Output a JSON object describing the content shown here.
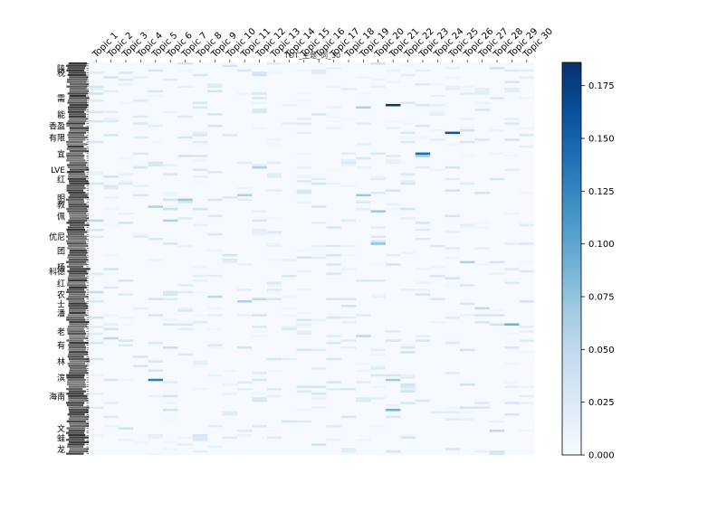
{
  "chart_data": {
    "type": "heatmap",
    "title": "TOT_主题_词_30",
    "columns": [
      "Topic 1",
      "Topic 2",
      "Topic 3",
      "Topic 4",
      "Topic 5",
      "Topic 6",
      "Topic 7",
      "Topic 8",
      "Topic 9",
      "Topic 10",
      "Topic 11",
      "Topic 12",
      "Topic 13",
      "Topic 14",
      "Topic 15",
      "Topic 16",
      "Topic 17",
      "Topic 18",
      "Topic 19",
      "Topic 20",
      "Topic 21",
      "Topic 22",
      "Topic 23",
      "Topic 24",
      "Topic 25",
      "Topic 26",
      "Topic 27",
      "Topic 28",
      "Topic 29",
      "Topic 30"
    ],
    "row_labels": [
      {
        "row": 2,
        "text": "陕"
      },
      {
        "row": 4,
        "text": "税"
      },
      {
        "row": 15,
        "text": "需"
      },
      {
        "row": 22,
        "text": "能"
      },
      {
        "row": 27,
        "text": "香盈"
      },
      {
        "row": 32,
        "text": "有限"
      },
      {
        "row": 39,
        "text": "宜"
      },
      {
        "row": 46,
        "text": "LVE"
      },
      {
        "row": 50,
        "text": "红"
      },
      {
        "row": 58,
        "text": "明"
      },
      {
        "row": 61,
        "text": "教"
      },
      {
        "row": 66,
        "text": "佩"
      },
      {
        "row": 75,
        "text": "优尼"
      },
      {
        "row": 81,
        "text": "团"
      },
      {
        "row": 88,
        "text": "杨"
      },
      {
        "row": 90,
        "text": "科德"
      },
      {
        "row": 95,
        "text": "红"
      },
      {
        "row": 100,
        "text": "农"
      },
      {
        "row": 104,
        "text": "士"
      },
      {
        "row": 108,
        "text": "潘"
      },
      {
        "row": 116,
        "text": "老"
      },
      {
        "row": 122,
        "text": "有"
      },
      {
        "row": 129,
        "text": "林"
      },
      {
        "row": 136,
        "text": "滨"
      },
      {
        "row": 144,
        "text": "海南"
      },
      {
        "row": 158,
        "text": "文"
      },
      {
        "row": 162,
        "text": "蛙"
      },
      {
        "row": 167,
        "text": "龙"
      }
    ],
    "n_rows": 170,
    "colorbar": {
      "min": 0,
      "max": 0.186,
      "ticks": [
        "0.000",
        "0.025",
        "0.050",
        "0.075",
        "0.100",
        "0.125",
        "0.150",
        "0.175"
      ],
      "colormap": "Blues"
    },
    "highlights": [
      {
        "topic": 1,
        "row": 4,
        "value": 0.02
      },
      {
        "topic": 1,
        "row": 68,
        "value": 0.05
      },
      {
        "topic": 1,
        "row": 99,
        "value": 0.045
      },
      {
        "topic": 1,
        "row": 128,
        "value": 0.03
      },
      {
        "topic": 2,
        "row": 115,
        "value": 0.03
      },
      {
        "topic": 2,
        "row": 119,
        "value": 0.05
      },
      {
        "topic": 3,
        "row": 7,
        "value": 0.025
      },
      {
        "topic": 5,
        "row": 62,
        "value": 0.06
      },
      {
        "topic": 5,
        "row": 137,
        "value": 0.13
      },
      {
        "topic": 5,
        "row": 3,
        "value": 0.03
      },
      {
        "topic": 6,
        "row": 63,
        "value": 0.04
      },
      {
        "topic": 6,
        "row": 68,
        "value": 0.06
      },
      {
        "topic": 6,
        "row": 123,
        "value": 0.04
      },
      {
        "topic": 7,
        "row": 59,
        "value": 0.07
      },
      {
        "topic": 8,
        "row": 5,
        "value": 0.03
      },
      {
        "topic": 9,
        "row": 101,
        "value": 0.05
      },
      {
        "topic": 11,
        "row": 57,
        "value": 0.06
      },
      {
        "topic": 11,
        "row": 103,
        "value": 0.06
      },
      {
        "topic": 11,
        "row": 3,
        "value": 0.025
      },
      {
        "topic": 12,
        "row": 45,
        "value": 0.06
      },
      {
        "topic": 12,
        "row": 102,
        "value": 0.05
      },
      {
        "topic": 19,
        "row": 19,
        "value": 0.06
      },
      {
        "topic": 19,
        "row": 57,
        "value": 0.07
      },
      {
        "topic": 19,
        "row": 118,
        "value": 0.05
      },
      {
        "topic": 20,
        "row": 64,
        "value": 0.07
      },
      {
        "topic": 20,
        "row": 78,
        "value": 0.075
      },
      {
        "topic": 21,
        "row": 18,
        "value": 0.18
      },
      {
        "topic": 21,
        "row": 137,
        "value": 0.07
      },
      {
        "topic": 21,
        "row": 150,
        "value": 0.09
      },
      {
        "topic": 23,
        "row": 39,
        "value": 0.14
      },
      {
        "topic": 23,
        "row": 40,
        "value": 0.07
      },
      {
        "topic": 25,
        "row": 30,
        "value": 0.16
      },
      {
        "topic": 26,
        "row": 86,
        "value": 0.06
      },
      {
        "topic": 27,
        "row": 106,
        "value": 0.05
      },
      {
        "topic": 28,
        "row": 159,
        "value": 0.05
      },
      {
        "topic": 29,
        "row": 113,
        "value": 0.09
      }
    ]
  }
}
